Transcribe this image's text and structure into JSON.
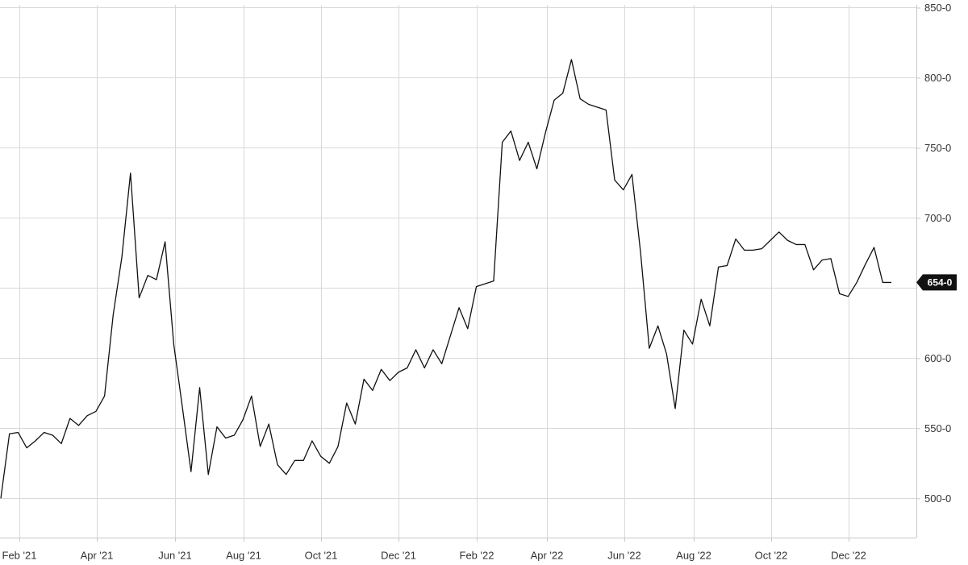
{
  "chart_data": {
    "type": "line",
    "title": "",
    "xlabel": "",
    "ylabel": "",
    "x_tick_labels": [
      "Feb '21",
      "Apr '21",
      "Jun '21",
      "Aug '21",
      "Oct '21",
      "Dec '21",
      "Feb '22",
      "Apr '22",
      "Jun '22",
      "Aug '22",
      "Oct '22",
      "Dec '22"
    ],
    "y_tick_labels": [
      "850-0",
      "800-0",
      "750-0",
      "700-0",
      "600-0",
      "550-0",
      "500-0"
    ],
    "y_tick_values": [
      850,
      800,
      750,
      700,
      600,
      550,
      500
    ],
    "ylim": [
      472,
      852
    ],
    "grid": true,
    "axis_side": "right",
    "last_value_label": "654-0",
    "last_value": 654,
    "series": [
      {
        "values": [
          500,
          546,
          547,
          536,
          541,
          547,
          545,
          539,
          557,
          552,
          559,
          562,
          573,
          631,
          672,
          732,
          643,
          659,
          656,
          683,
          610,
          565,
          519,
          579,
          517,
          551,
          543,
          545,
          556,
          573,
          537,
          553,
          524,
          517,
          527,
          527,
          541,
          530,
          525,
          537,
          568,
          553,
          585,
          577,
          592,
          584,
          590,
          593,
          606,
          593,
          606,
          596,
          616,
          636,
          621,
          651,
          653,
          655,
          754,
          762,
          741,
          754,
          735,
          761,
          784,
          789,
          813,
          785,
          781,
          779,
          777,
          727,
          720,
          731,
          675,
          607,
          623,
          603,
          564,
          620,
          610,
          642,
          623,
          665,
          666,
          685,
          677,
          677,
          678,
          684,
          690,
          684,
          681,
          681,
          663,
          670,
          671,
          646,
          644,
          654,
          667,
          679,
          654,
          654
        ]
      }
    ],
    "colors": {
      "line": "#111111",
      "grid": "#d9d9d9",
      "badge": "#111111"
    }
  }
}
